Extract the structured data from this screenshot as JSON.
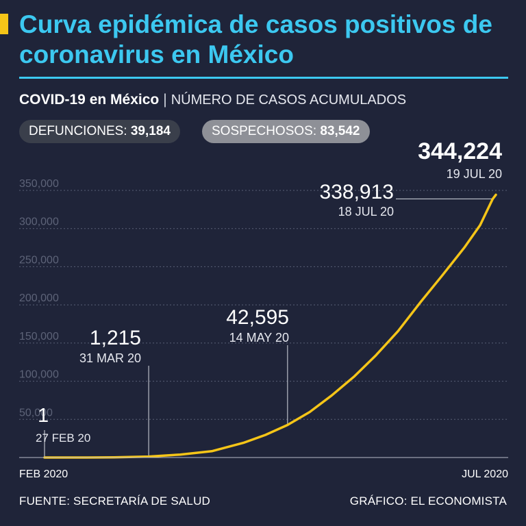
{
  "header": {
    "title": "Curva epidémica de casos positivos de coronavirus en México",
    "subtitle_strong": "COVID-19 en México",
    "subtitle_sep": "|",
    "subtitle_light": "NÚMERO DE CASOS ACUMULADOS"
  },
  "pills": {
    "deaths_label": "DEFUNCIONES:",
    "deaths_value": "39,184",
    "suspects_label": "SOSPECHOSOS:",
    "suspects_value": "83,542"
  },
  "footer": {
    "source": "FUENTE: SECRETARÍA DE SALUD",
    "credit": "GRÁFICO: EL ECONOMISTA"
  },
  "colors": {
    "background": "#1f2439",
    "title": "#3cc8f0",
    "line": "#f5c518",
    "accent": "#f5c518"
  },
  "chart_data": {
    "type": "line",
    "title": "NÚMERO DE CASOS ACUMULADOS",
    "xlabel": "",
    "ylabel": "",
    "x_start_label": "FEB 2020",
    "x_end_label": "JUL 2020",
    "ylim": [
      0,
      350000
    ],
    "y_ticks": [
      50000,
      100000,
      150000,
      200000,
      250000,
      300000,
      350000
    ],
    "y_tick_labels": [
      "50,000",
      "100,000",
      "150,000",
      "200,000",
      "250,000",
      "300,000",
      "350,000"
    ],
    "grid": true,
    "series": [
      {
        "x": [
          "2020-02-27",
          "2020-03-10",
          "2020-03-20",
          "2020-03-31",
          "2020-04-10",
          "2020-04-20",
          "2020-04-30",
          "2020-05-07",
          "2020-05-14",
          "2020-05-21",
          "2020-05-28",
          "2020-06-04",
          "2020-06-11",
          "2020-06-18",
          "2020-06-25",
          "2020-07-02",
          "2020-07-09",
          "2020-07-14",
          "2020-07-18",
          "2020-07-19"
        ],
        "values": [
          1,
          7,
          203,
          1215,
          3844,
          8261,
          19224,
          29616,
          42595,
          59567,
          81400,
          105680,
          133974,
          165455,
          202951,
          238511,
          275003,
          304435,
          338913,
          344224
        ]
      }
    ],
    "annotations": [
      {
        "date": "2020-02-27",
        "value_label": "1",
        "date_label": "27 FEB 20"
      },
      {
        "date": "2020-03-31",
        "value_label": "1,215",
        "date_label": "31 MAR 20"
      },
      {
        "date": "2020-05-14",
        "value_label": "42,595",
        "date_label": "14 MAY 20"
      },
      {
        "date": "2020-07-18",
        "value_label": "338,913",
        "date_label": "18 JUL 20"
      },
      {
        "date": "2020-07-19",
        "value_label": "344,224",
        "date_label": "19 JUL 20"
      }
    ]
  }
}
